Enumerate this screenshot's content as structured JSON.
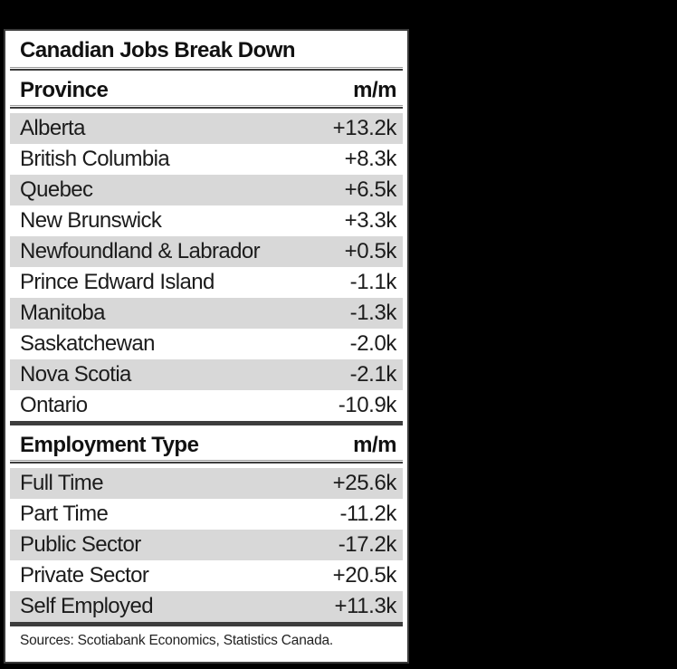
{
  "chart_data": {
    "type": "table",
    "title": "Canadian Jobs Break Down",
    "sections": [
      {
        "header": [
          "Province",
          "m/m"
        ],
        "rows": [
          [
            "Alberta",
            "+13.2k"
          ],
          [
            "British Columbia",
            "+8.3k"
          ],
          [
            "Quebec",
            "+6.5k"
          ],
          [
            "New Brunswick",
            "+3.3k"
          ],
          [
            "Newfoundland & Labrador",
            "+0.5k"
          ],
          [
            "Prince Edward Island",
            "-1.1k"
          ],
          [
            "Manitoba",
            "-1.3k"
          ],
          [
            "Saskatchewan",
            "-2.0k"
          ],
          [
            "Nova Scotia",
            "-2.1k"
          ],
          [
            "Ontario",
            "-10.9k"
          ]
        ]
      },
      {
        "header": [
          "Employment Type",
          "m/m"
        ],
        "rows": [
          [
            "Full Time",
            "+25.6k"
          ],
          [
            "Part Time",
            "-11.2k"
          ],
          [
            "Public Sector",
            "-17.2k"
          ],
          [
            "Private Sector",
            "+20.5k"
          ],
          [
            "Self Employed",
            "+11.3k"
          ]
        ]
      }
    ],
    "source_note": "Sources: Scotiabank Economics, Statistics Canada.",
    "layout_hints": {
      "grid": "alternating-row-shading",
      "value_alignment": "right"
    }
  },
  "colors": {
    "page_background": "#000000",
    "card_background": "#ffffff",
    "card_border": "#3a3a3a",
    "row_alt_background": "#d8d8d8",
    "rule_dark": "#3d3d3d",
    "rule_light": "#9b9b9b",
    "text": "#1a1a1a"
  }
}
